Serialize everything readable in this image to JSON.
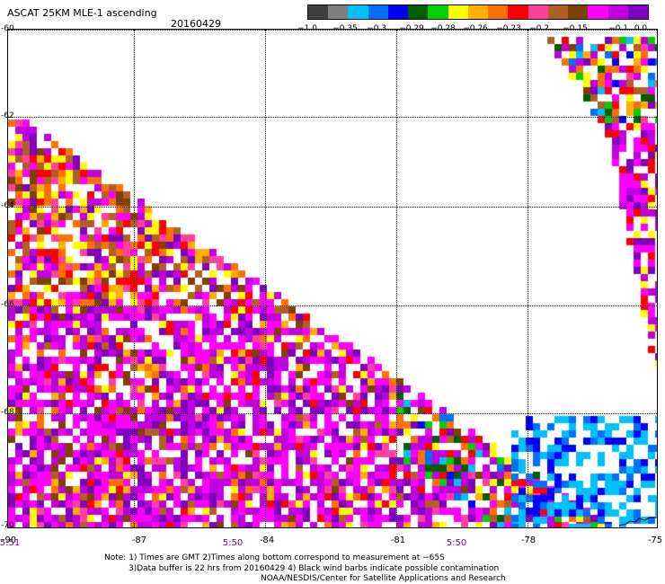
{
  "header": {
    "title": "ASCAT 25KM MLE-1 ascending",
    "date": "20160429"
  },
  "colorbar": {
    "colors": [
      "#3f3f3f",
      "#7f7f7f",
      "#00c0ff",
      "#0070ff",
      "#0000ff",
      "#006000",
      "#00d000",
      "#ffff00",
      "#ffb000",
      "#ff7000",
      "#ff0000",
      "#ff40a0",
      "#b06020",
      "#804000",
      "#ff00ff",
      "#c000e0",
      "#8000c0"
    ],
    "tick_labels": [
      "−1.0",
      "−0.35",
      "−0.3",
      "−0.29",
      "−0.28",
      "−0.26",
      "−0.23",
      "−0.2",
      "−0.15",
      "−0.1",
      "0.0"
    ]
  },
  "chart_data": {
    "type": "heatmap",
    "title": "ASCAT 25KM MLE-1 ascending",
    "subtitle": "20160429",
    "lat_range": [
      -70,
      -60
    ],
    "lon_range": [
      -90,
      -75
    ],
    "y_tick_labels": [
      "-60",
      "-62",
      "-64",
      "-66",
      "-68",
      "-70"
    ],
    "x_tick_labels": [
      "-90",
      "-87",
      "-84",
      "-81",
      "-78",
      "-75"
    ],
    "time_labels": [
      "5:51",
      "5:50",
      "5:50"
    ],
    "legend_placement": "top-right",
    "grid": true,
    "colorscale": "MLE-1 value, −1.0 to 0.0"
  },
  "notes": [
    "Note: 1) Times are GMT 2)Times along bottom correspond to measurement at −65S",
    "3)Data buffer is 22 hrs from 20160429 4) Black wind barbs indicate possible contamination",
    "NOAA/NESDIS/Center for Satellite Applications and Research"
  ]
}
